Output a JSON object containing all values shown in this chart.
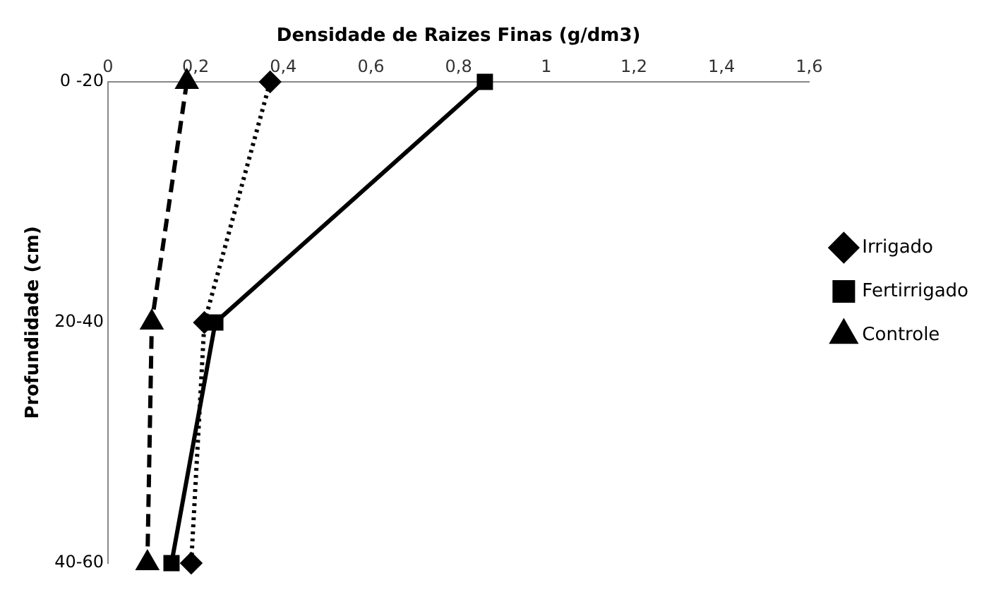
{
  "chart_data": {
    "type": "line",
    "orientation": "horizontal",
    "xlabel": "Densidade de Raizes Finas (g/dm3)",
    "ylabel": "Profundidade (cm)",
    "categories": [
      "0 -20",
      "20-40",
      "40-60"
    ],
    "xlim": [
      0,
      1.6
    ],
    "xticks": [
      0,
      {
        "value": 0.2,
        "label": "0,2"
      },
      {
        "value": 0.4,
        "label": "0,4"
      },
      {
        "value": 0.6,
        "label": "0,6"
      },
      {
        "value": 0.8,
        "label": "0,8"
      },
      1,
      {
        "value": 1.2,
        "label": "1,2"
      },
      {
        "value": 1.4,
        "label": "1,4"
      },
      {
        "value": 1.6,
        "label": "1,6"
      }
    ],
    "grid": false,
    "legend": "right",
    "series": [
      {
        "name": "Irrigado",
        "color": "#000000",
        "values": [
          0.37,
          0.22,
          0.19
        ],
        "marker": "diamond",
        "line_style": "dotted"
      },
      {
        "name": "Fertirrigado",
        "color": "#000000",
        "values": [
          0.86,
          0.245,
          0.145
        ],
        "marker": "square",
        "line_style": "solid"
      },
      {
        "name": "Controle",
        "color": "#000000",
        "values": [
          0.18,
          0.1,
          0.09
        ],
        "marker": "triangle",
        "line_style": "dashed"
      }
    ]
  }
}
